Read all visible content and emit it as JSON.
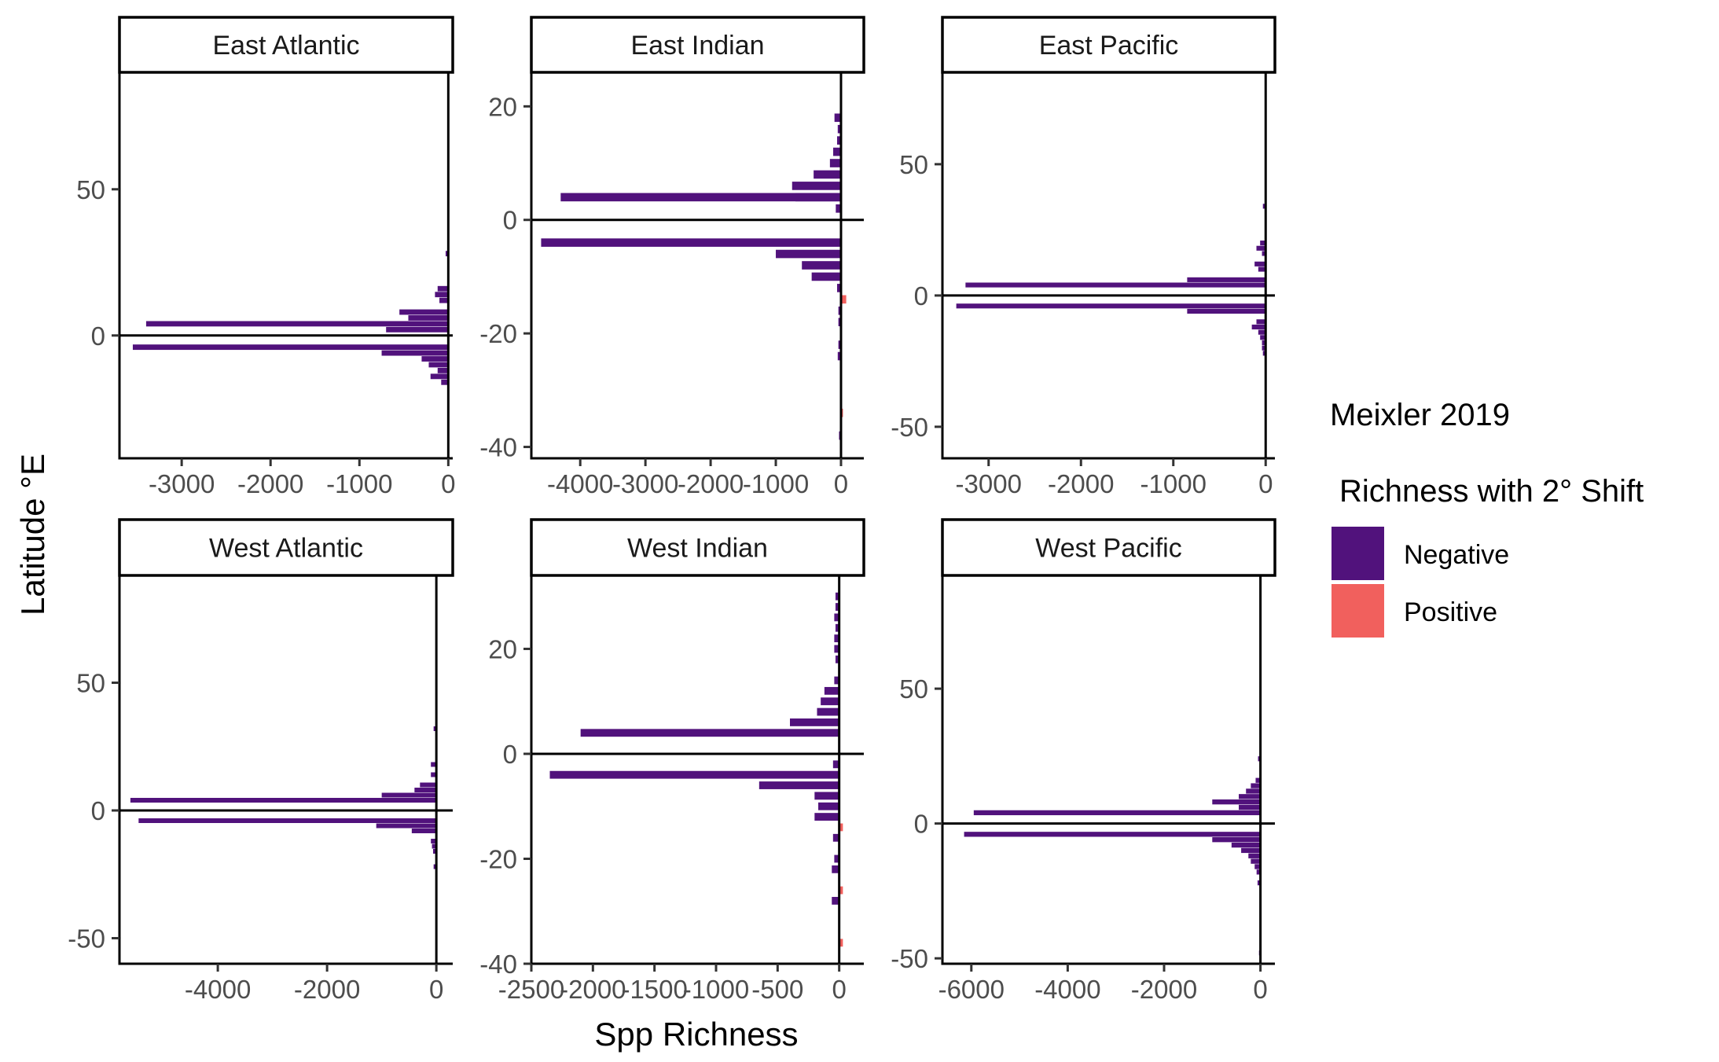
{
  "figure": {
    "x_axis_label": "Spp Richness",
    "y_axis_label": "Latitude °E",
    "legend": {
      "title": "Meixler 2019",
      "subtitle": "Richness with 2° Shift",
      "items": [
        {
          "label": "Negative",
          "color": "#51127C"
        },
        {
          "label": "Positive",
          "color": "#F1605D"
        }
      ]
    }
  },
  "chart_data": [
    {
      "type": "bar",
      "orientation": "horizontal",
      "title": "East Atlantic",
      "xlim": [
        -3700,
        50
      ],
      "ylim": [
        -42,
        90
      ],
      "x_ticks": [
        -3000,
        -2000,
        -1000,
        0
      ],
      "y_ticks": [
        -50,
        0,
        50
      ],
      "bar_height": 2,
      "bars": [
        {
          "y": 28,
          "x": -30,
          "sign": "negative"
        },
        {
          "y": 16,
          "x": -120,
          "sign": "negative"
        },
        {
          "y": 14,
          "x": -150,
          "sign": "negative"
        },
        {
          "y": 12,
          "x": -100,
          "sign": "negative"
        },
        {
          "y": 8,
          "x": -550,
          "sign": "negative"
        },
        {
          "y": 6,
          "x": -450,
          "sign": "negative"
        },
        {
          "y": 4,
          "x": -3400,
          "sign": "negative"
        },
        {
          "y": 2,
          "x": -700,
          "sign": "negative"
        },
        {
          "y": -4,
          "x": -3550,
          "sign": "negative"
        },
        {
          "y": -6,
          "x": -750,
          "sign": "negative"
        },
        {
          "y": -8,
          "x": -300,
          "sign": "negative"
        },
        {
          "y": -10,
          "x": -220,
          "sign": "negative"
        },
        {
          "y": -12,
          "x": -120,
          "sign": "negative"
        },
        {
          "y": -14,
          "x": -200,
          "sign": "negative"
        },
        {
          "y": -16,
          "x": -80,
          "sign": "negative"
        }
      ]
    },
    {
      "type": "bar",
      "orientation": "horizontal",
      "title": "East Indian",
      "xlim": [
        -4750,
        350
      ],
      "ylim": [
        -42,
        26
      ],
      "x_ticks": [
        -4000,
        -3000,
        -2000,
        -1000,
        0
      ],
      "y_ticks": [
        -40,
        -20,
        0,
        20
      ],
      "bar_height": 1.6,
      "bars": [
        {
          "y": 18,
          "x": -100,
          "sign": "negative"
        },
        {
          "y": 16,
          "x": -50,
          "sign": "negative"
        },
        {
          "y": 14,
          "x": -60,
          "sign": "negative"
        },
        {
          "y": 12,
          "x": -120,
          "sign": "negative"
        },
        {
          "y": 10,
          "x": -170,
          "sign": "negative"
        },
        {
          "y": 8,
          "x": -420,
          "sign": "negative"
        },
        {
          "y": 6,
          "x": -750,
          "sign": "negative"
        },
        {
          "y": 4,
          "x": -700,
          "sign": "negative"
        },
        {
          "y": 4,
          "x": -4300,
          "sign": "negative"
        },
        {
          "y": 2,
          "x": -80,
          "sign": "negative"
        },
        {
          "y": -4,
          "x": -4600,
          "sign": "negative"
        },
        {
          "y": -6,
          "x": -1000,
          "sign": "negative"
        },
        {
          "y": -8,
          "x": -600,
          "sign": "negative"
        },
        {
          "y": -10,
          "x": -450,
          "sign": "negative"
        },
        {
          "y": -12,
          "x": -60,
          "sign": "negative"
        },
        {
          "y": -14,
          "x": 80,
          "sign": "positive"
        },
        {
          "y": -16,
          "x": -40,
          "sign": "negative"
        },
        {
          "y": -18,
          "x": -40,
          "sign": "negative"
        },
        {
          "y": -22,
          "x": -40,
          "sign": "negative"
        },
        {
          "y": -24,
          "x": -50,
          "sign": "negative"
        },
        {
          "y": -34,
          "x": 30,
          "sign": "positive"
        },
        {
          "y": -38,
          "x": -30,
          "sign": "negative"
        }
      ]
    },
    {
      "type": "bar",
      "orientation": "horizontal",
      "title": "East Pacific",
      "xlim": [
        -3500,
        100
      ],
      "ylim": [
        -62,
        85
      ],
      "x_ticks": [
        -3000,
        -2000,
        -1000,
        0
      ],
      "y_ticks": [
        -50,
        0,
        50
      ],
      "bar_height": 2,
      "bars": [
        {
          "y": 34,
          "x": -30,
          "sign": "negative"
        },
        {
          "y": 20,
          "x": -60,
          "sign": "negative"
        },
        {
          "y": 18,
          "x": -100,
          "sign": "negative"
        },
        {
          "y": 16,
          "x": -40,
          "sign": "negative"
        },
        {
          "y": 12,
          "x": -120,
          "sign": "negative"
        },
        {
          "y": 10,
          "x": -80,
          "sign": "negative"
        },
        {
          "y": 6,
          "x": -850,
          "sign": "negative"
        },
        {
          "y": 4,
          "x": -3250,
          "sign": "negative"
        },
        {
          "y": -4,
          "x": -3350,
          "sign": "negative"
        },
        {
          "y": -6,
          "x": -850,
          "sign": "negative"
        },
        {
          "y": -10,
          "x": -100,
          "sign": "negative"
        },
        {
          "y": -12,
          "x": -150,
          "sign": "negative"
        },
        {
          "y": -14,
          "x": -80,
          "sign": "negative"
        },
        {
          "y": -16,
          "x": -60,
          "sign": "negative"
        },
        {
          "y": -18,
          "x": -40,
          "sign": "negative"
        },
        {
          "y": -20,
          "x": -40,
          "sign": "negative"
        },
        {
          "y": -22,
          "x": -30,
          "sign": "negative"
        }
      ]
    },
    {
      "type": "bar",
      "orientation": "horizontal",
      "title": "West Atlantic",
      "xlim": [
        -5800,
        300
      ],
      "ylim": [
        -60,
        92
      ],
      "x_ticks": [
        -4000,
        -2000,
        0
      ],
      "y_ticks": [
        -50,
        0,
        50
      ],
      "bar_height": 2,
      "bars": [
        {
          "y": 32,
          "x": -50,
          "sign": "negative"
        },
        {
          "y": 18,
          "x": -100,
          "sign": "negative"
        },
        {
          "y": 14,
          "x": -100,
          "sign": "negative"
        },
        {
          "y": 10,
          "x": -300,
          "sign": "negative"
        },
        {
          "y": 8,
          "x": -400,
          "sign": "negative"
        },
        {
          "y": 6,
          "x": -1000,
          "sign": "negative"
        },
        {
          "y": 4,
          "x": -5600,
          "sign": "negative"
        },
        {
          "y": -4,
          "x": -5450,
          "sign": "negative"
        },
        {
          "y": -6,
          "x": -1100,
          "sign": "negative"
        },
        {
          "y": -8,
          "x": -450,
          "sign": "negative"
        },
        {
          "y": -12,
          "x": -100,
          "sign": "negative"
        },
        {
          "y": -14,
          "x": -80,
          "sign": "negative"
        },
        {
          "y": -16,
          "x": -60,
          "sign": "negative"
        },
        {
          "y": -22,
          "x": -50,
          "sign": "negative"
        }
      ]
    },
    {
      "type": "bar",
      "orientation": "horizontal",
      "title": "West Indian",
      "xlim": [
        -2500,
        200
      ],
      "ylim": [
        -40,
        34
      ],
      "x_ticks": [
        -2500,
        -2000,
        -1500,
        -1000,
        -500,
        0
      ],
      "y_ticks": [
        -40,
        -20,
        0,
        20
      ],
      "bar_height": 1.6,
      "bars": [
        {
          "y": 30,
          "x": -30,
          "sign": "negative"
        },
        {
          "y": 28,
          "x": -30,
          "sign": "negative"
        },
        {
          "y": 26,
          "x": -40,
          "sign": "negative"
        },
        {
          "y": 24,
          "x": -30,
          "sign": "negative"
        },
        {
          "y": 22,
          "x": -40,
          "sign": "negative"
        },
        {
          "y": 20,
          "x": -40,
          "sign": "negative"
        },
        {
          "y": 18,
          "x": -30,
          "sign": "negative"
        },
        {
          "y": 14,
          "x": -40,
          "sign": "negative"
        },
        {
          "y": 12,
          "x": -120,
          "sign": "negative"
        },
        {
          "y": 10,
          "x": -150,
          "sign": "negative"
        },
        {
          "y": 8,
          "x": -180,
          "sign": "negative"
        },
        {
          "y": 6,
          "x": -400,
          "sign": "negative"
        },
        {
          "y": 4,
          "x": -2100,
          "sign": "negative"
        },
        {
          "y": -2,
          "x": -50,
          "sign": "negative"
        },
        {
          "y": -4,
          "x": -2350,
          "sign": "negative"
        },
        {
          "y": -6,
          "x": -650,
          "sign": "negative"
        },
        {
          "y": -8,
          "x": -200,
          "sign": "negative"
        },
        {
          "y": -10,
          "x": -170,
          "sign": "negative"
        },
        {
          "y": -12,
          "x": -200,
          "sign": "negative"
        },
        {
          "y": -14,
          "x": 30,
          "sign": "positive"
        },
        {
          "y": -16,
          "x": -50,
          "sign": "negative"
        },
        {
          "y": -20,
          "x": -40,
          "sign": "negative"
        },
        {
          "y": -22,
          "x": -60,
          "sign": "negative"
        },
        {
          "y": -26,
          "x": 30,
          "sign": "positive"
        },
        {
          "y": -28,
          "x": -60,
          "sign": "negative"
        },
        {
          "y": -36,
          "x": 30,
          "sign": "positive"
        }
      ]
    },
    {
      "type": "bar",
      "orientation": "horizontal",
      "title": "West Pacific",
      "xlim": [
        -6600,
        300
      ],
      "ylim": [
        -52,
        92
      ],
      "x_ticks": [
        -6000,
        -4000,
        -2000,
        0
      ],
      "y_ticks": [
        -50,
        0,
        50
      ],
      "bar_height": 2,
      "bars": [
        {
          "y": 24,
          "x": -50,
          "sign": "negative"
        },
        {
          "y": 16,
          "x": -100,
          "sign": "negative"
        },
        {
          "y": 14,
          "x": -200,
          "sign": "negative"
        },
        {
          "y": 12,
          "x": -300,
          "sign": "negative"
        },
        {
          "y": 10,
          "x": -450,
          "sign": "negative"
        },
        {
          "y": 8,
          "x": -1000,
          "sign": "negative"
        },
        {
          "y": 6,
          "x": -450,
          "sign": "negative"
        },
        {
          "y": 4,
          "x": -5950,
          "sign": "negative"
        },
        {
          "y": -4,
          "x": -6150,
          "sign": "negative"
        },
        {
          "y": -6,
          "x": -1000,
          "sign": "negative"
        },
        {
          "y": -8,
          "x": -600,
          "sign": "negative"
        },
        {
          "y": -10,
          "x": -400,
          "sign": "negative"
        },
        {
          "y": -12,
          "x": -250,
          "sign": "negative"
        },
        {
          "y": -14,
          "x": -200,
          "sign": "negative"
        },
        {
          "y": -16,
          "x": -120,
          "sign": "negative"
        },
        {
          "y": -18,
          "x": -80,
          "sign": "negative"
        },
        {
          "y": -22,
          "x": -60,
          "sign": "negative"
        },
        {
          "y": -48,
          "x": -30,
          "sign": "negative"
        }
      ]
    }
  ]
}
